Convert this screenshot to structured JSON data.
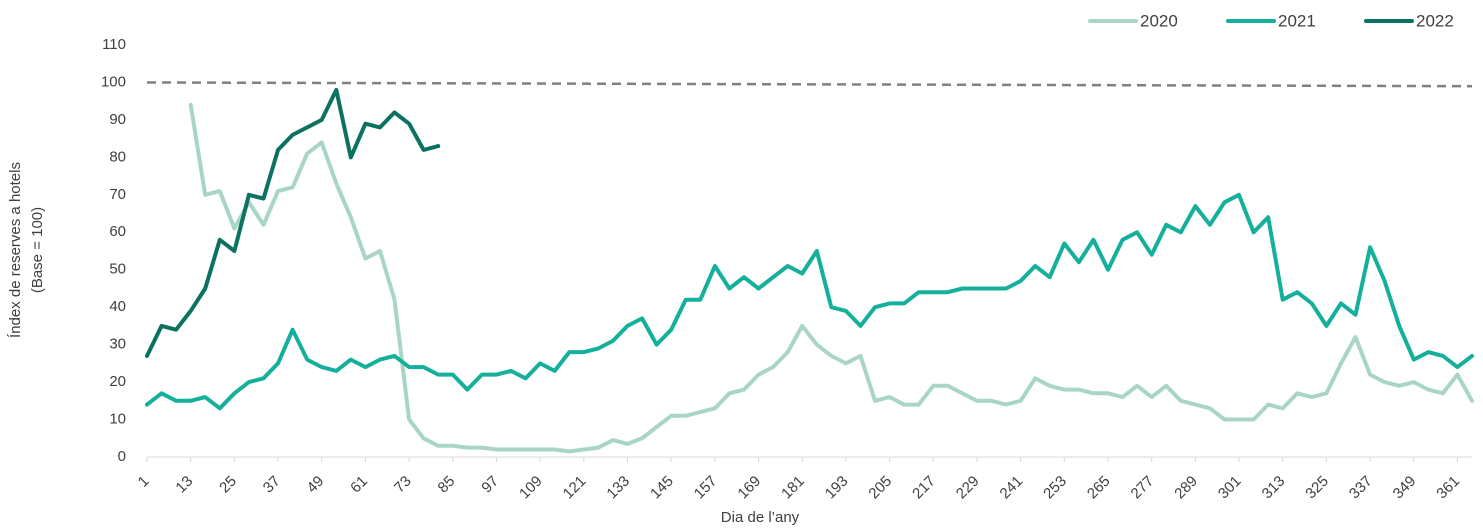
{
  "chart_data": {
    "type": "line",
    "xlabel": "Dia de l’any",
    "ylabel": [
      "Índex de reserves a hotels",
      "(Base = 100)"
    ],
    "x": [
      1,
      5,
      9,
      13,
      17,
      21,
      25,
      29,
      33,
      37,
      41,
      45,
      49,
      53,
      57,
      61,
      65,
      69,
      73,
      77,
      81,
      85,
      89,
      93,
      97,
      101,
      105,
      109,
      113,
      117,
      121,
      125,
      129,
      133,
      137,
      141,
      145,
      149,
      153,
      157,
      161,
      165,
      169,
      173,
      177,
      181,
      185,
      189,
      193,
      197,
      201,
      205,
      209,
      213,
      217,
      221,
      225,
      229,
      233,
      237,
      241,
      245,
      249,
      253,
      257,
      261,
      265,
      269,
      273,
      277,
      281,
      285,
      289,
      293,
      297,
      301,
      305,
      309,
      313,
      317,
      321,
      325,
      329,
      333,
      337,
      341,
      345,
      349,
      353,
      357,
      361,
      365
    ],
    "series": [
      {
        "name": "2020",
        "color": "#a9d6c4",
        "values": [
          null,
          null,
          null,
          94,
          70,
          71,
          61,
          68,
          62,
          71,
          72,
          81,
          84,
          73,
          64,
          53,
          55,
          42,
          10,
          5,
          3,
          3,
          2.5,
          2.5,
          2,
          2,
          2,
          2,
          2,
          1.5,
          2,
          2.5,
          4.5,
          3.5,
          5,
          8,
          11,
          11,
          12,
          13,
          17,
          18,
          22,
          24,
          28,
          35,
          30,
          27,
          25,
          27,
          15,
          16,
          14,
          14,
          19,
          19,
          17,
          15,
          15,
          14,
          15,
          21,
          19,
          18,
          18,
          17,
          17,
          16,
          19,
          16,
          19,
          15,
          14,
          13,
          10,
          10,
          10,
          14,
          13,
          17,
          16,
          17,
          25,
          32,
          22,
          20,
          19,
          20,
          18,
          17,
          22,
          15
        ]
      },
      {
        "name": "2021",
        "color": "#14b09b",
        "values": [
          14,
          17,
          15,
          15,
          16,
          13,
          17,
          20,
          21,
          25,
          34,
          26,
          24,
          23,
          26,
          24,
          26,
          27,
          24,
          24,
          22,
          22,
          18,
          22,
          22,
          23,
          21,
          25,
          23,
          28,
          28,
          29,
          31,
          35,
          37,
          30,
          34,
          42,
          42,
          51,
          45,
          48,
          45,
          48,
          51,
          49,
          55,
          40,
          39,
          35,
          40,
          41,
          41,
          44,
          44,
          44,
          45,
          45,
          45,
          45,
          47,
          51,
          48,
          57,
          52,
          58,
          50,
          58,
          60,
          54,
          62,
          60,
          67,
          62,
          68,
          70,
          60,
          64,
          42,
          44,
          41,
          35,
          41,
          38,
          56,
          47,
          35,
          26,
          28,
          27,
          24,
          27
        ]
      },
      {
        "name": "2022",
        "color": "#0b7261",
        "values": [
          27,
          35,
          34,
          39,
          45,
          58,
          55,
          70,
          69,
          82,
          86,
          88,
          90,
          98,
          80,
          89,
          88,
          92,
          89,
          82,
          83,
          null,
          null,
          null,
          null,
          null,
          null,
          null,
          null,
          null,
          null,
          null,
          null,
          null,
          null,
          null,
          null,
          null,
          null,
          null,
          null,
          null,
          null,
          null,
          null,
          null,
          null,
          null,
          null,
          null,
          null,
          null,
          null,
          null,
          null,
          null,
          null,
          null,
          null,
          null,
          null,
          null,
          null,
          null,
          null,
          null,
          null,
          null,
          null,
          null,
          null,
          null,
          null,
          null,
          null,
          null,
          null,
          null,
          null,
          null,
          null,
          null,
          null,
          null,
          null,
          null,
          null,
          null,
          null,
          null,
          null,
          null
        ]
      }
    ],
    "reference_line": {
      "x": [
        1,
        365
      ],
      "y": [
        100,
        99
      ],
      "color": "#808080"
    },
    "xlim": [
      1,
      365
    ],
    "xticks": [
      1,
      13,
      25,
      37,
      49,
      61,
      73,
      85,
      97,
      109,
      121,
      133,
      145,
      157,
      169,
      181,
      193,
      205,
      217,
      229,
      241,
      253,
      265,
      277,
      289,
      301,
      313,
      325,
      337,
      349,
      361
    ],
    "ylim": [
      0,
      110
    ],
    "yticks": [
      0,
      10,
      20,
      30,
      40,
      50,
      60,
      70,
      80,
      90,
      100,
      110
    ],
    "grid": false,
    "legend": "top-right"
  }
}
